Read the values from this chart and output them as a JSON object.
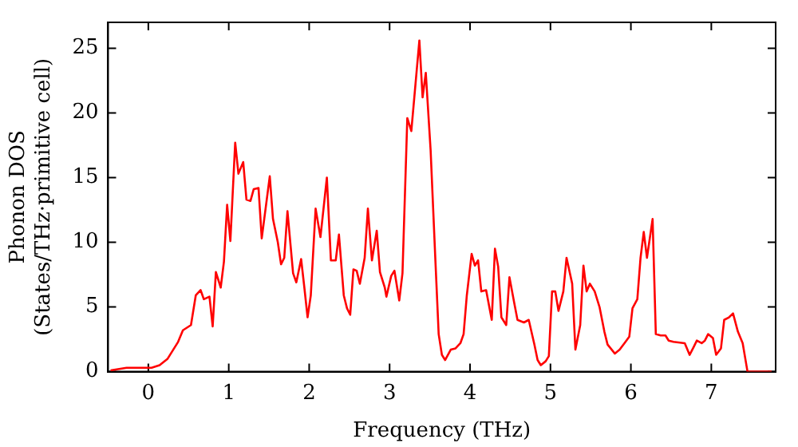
{
  "chart_data": {
    "type": "line",
    "xlabel": "Frequency (THz)",
    "ylabel": "Phonon DOS\n(States/THz·primitive cell)",
    "xlim": [
      -0.5,
      7.8
    ],
    "ylim": [
      0,
      27
    ],
    "xticks": [
      0,
      1,
      2,
      3,
      4,
      5,
      6,
      7
    ],
    "yticks": [
      0,
      5,
      10,
      15,
      20,
      25
    ],
    "grid": false,
    "legend": false,
    "marker": "none",
    "line_style": "solid",
    "series": [
      {
        "color": "#ff0000",
        "x": [
          -0.47,
          -0.27,
          0.04,
          0.14,
          0.24,
          0.37,
          0.43,
          0.53,
          0.59,
          0.65,
          0.69,
          0.76,
          0.8,
          0.84,
          0.9,
          0.94,
          0.98,
          1.02,
          1.08,
          1.12,
          1.18,
          1.22,
          1.27,
          1.31,
          1.37,
          1.41,
          1.51,
          1.55,
          1.61,
          1.65,
          1.69,
          1.73,
          1.8,
          1.84,
          1.9,
          1.94,
          1.98,
          2.02,
          2.08,
          2.14,
          2.22,
          2.27,
          2.33,
          2.37,
          2.43,
          2.47,
          2.51,
          2.55,
          2.59,
          2.63,
          2.69,
          2.73,
          2.78,
          2.84,
          2.88,
          2.94,
          2.96,
          3.02,
          3.06,
          3.12,
          3.16,
          3.22,
          3.27,
          3.29,
          3.37,
          3.41,
          3.45,
          3.51,
          3.57,
          3.61,
          3.65,
          3.69,
          3.76,
          3.82,
          3.88,
          3.92,
          3.96,
          4.02,
          4.06,
          4.1,
          4.14,
          4.2,
          4.27,
          4.31,
          4.35,
          4.39,
          4.45,
          4.49,
          4.55,
          4.59,
          4.67,
          4.73,
          4.8,
          4.84,
          4.88,
          4.94,
          4.98,
          5.02,
          5.06,
          5.1,
          5.16,
          5.2,
          5.27,
          5.31,
          5.37,
          5.41,
          5.45,
          5.49,
          5.55,
          5.61,
          5.67,
          5.71,
          5.8,
          5.86,
          5.92,
          5.98,
          6.02,
          6.08,
          6.12,
          6.16,
          6.2,
          6.27,
          6.31,
          6.37,
          6.43,
          6.47,
          6.53,
          6.67,
          6.73,
          6.78,
          6.82,
          6.88,
          6.92,
          6.96,
          7.02,
          7.06,
          7.12,
          7.16,
          7.22,
          7.27,
          7.33,
          7.39,
          7.45,
          7.75
        ],
        "values": [
          0.1,
          0.3,
          0.3,
          0.5,
          1.0,
          2.3,
          3.2,
          3.6,
          5.9,
          6.3,
          5.6,
          5.8,
          3.5,
          7.7,
          6.5,
          8.5,
          12.9,
          10.1,
          17.7,
          15.3,
          16.2,
          13.3,
          13.2,
          14.1,
          14.2,
          10.3,
          15.1,
          11.8,
          10.0,
          8.3,
          8.8,
          12.4,
          7.6,
          6.9,
          8.7,
          6.5,
          4.2,
          5.9,
          12.6,
          10.4,
          15.0,
          8.6,
          8.6,
          10.6,
          5.9,
          4.9,
          4.4,
          7.9,
          7.8,
          6.8,
          8.8,
          12.6,
          8.6,
          10.9,
          7.7,
          6.5,
          5.8,
          7.4,
          7.8,
          5.5,
          7.6,
          19.6,
          18.6,
          20.0,
          25.6,
          21.2,
          23.1,
          17.1,
          8.5,
          2.9,
          1.3,
          0.9,
          1.7,
          1.8,
          2.2,
          2.9,
          5.9,
          9.1,
          8.2,
          8.6,
          6.2,
          6.3,
          4.0,
          9.5,
          8.1,
          4.2,
          3.6,
          7.3,
          5.3,
          4.0,
          3.8,
          4.0,
          2.1,
          0.9,
          0.5,
          0.8,
          1.2,
          6.2,
          6.2,
          4.7,
          6.2,
          8.8,
          6.8,
          1.7,
          3.6,
          8.2,
          6.2,
          6.8,
          6.2,
          5.0,
          3.1,
          2.1,
          1.4,
          1.7,
          2.2,
          2.7,
          4.9,
          5.6,
          8.8,
          10.8,
          8.8,
          11.8,
          2.9,
          2.8,
          2.8,
          2.4,
          2.3,
          2.2,
          1.3,
          1.9,
          2.4,
          2.2,
          2.4,
          2.9,
          2.6,
          1.3,
          1.8,
          4.0,
          4.2,
          4.5,
          3.1,
          2.2,
          0,
          0
        ]
      }
    ]
  }
}
